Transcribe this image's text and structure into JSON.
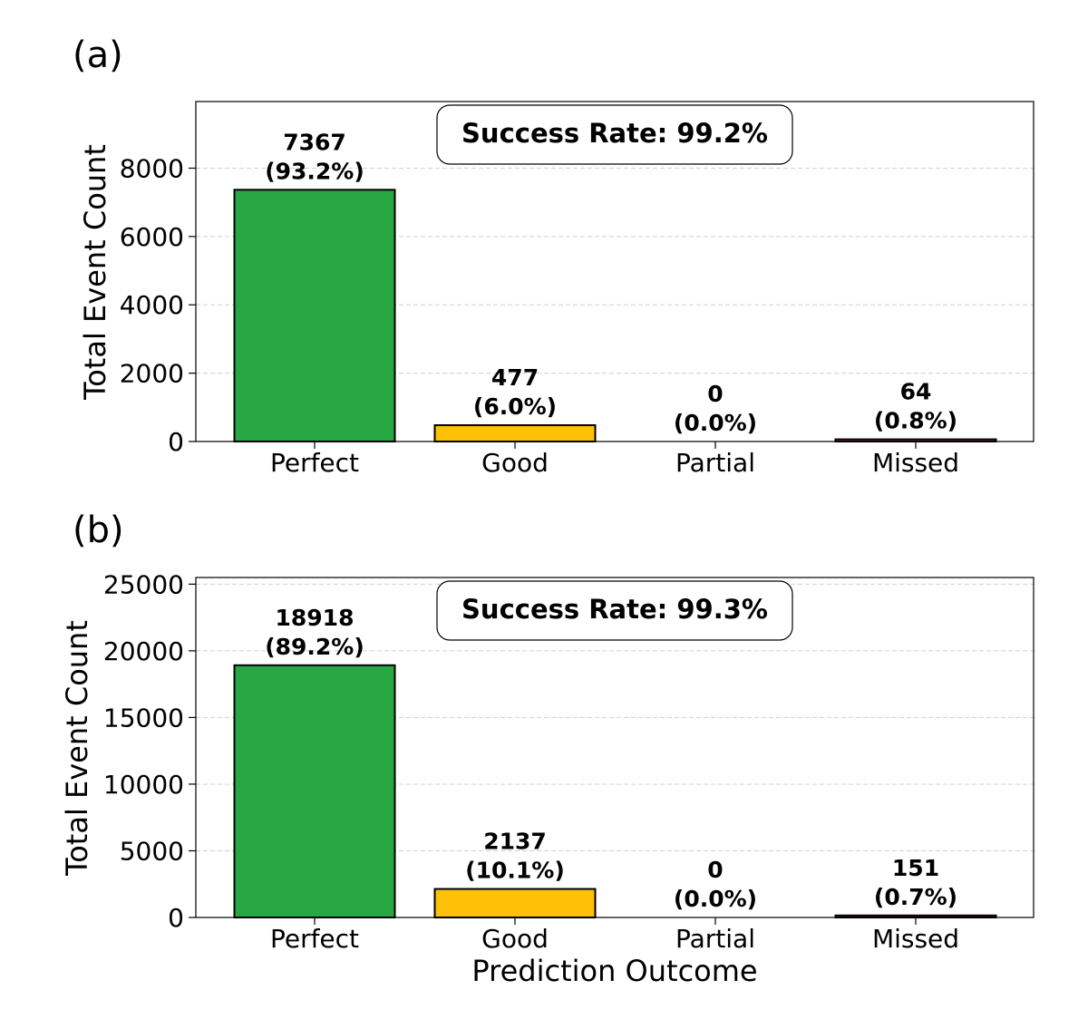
{
  "chart_data": [
    {
      "type": "bar",
      "panel_label": "(a)",
      "categories": [
        "Perfect",
        "Good",
        "Partial",
        "Missed"
      ],
      "values": [
        7367,
        477,
        0,
        64
      ],
      "bar_labels": [
        "7367",
        "477",
        "0",
        "64"
      ],
      "percent_labels": [
        "(93.2%)",
        "(6.0%)",
        "(0.0%)",
        "(0.8%)"
      ],
      "colors": [
        "#28a745",
        "#ffc107",
        "#fd7e14",
        "#dc3545"
      ],
      "ylabel": "Total Event Count",
      "xlabel": "",
      "ylim": [
        0,
        9950
      ],
      "yticks": [
        0,
        2000,
        4000,
        6000,
        8000
      ],
      "ytick_labels": [
        "0",
        "2000",
        "4000",
        "6000",
        "8000"
      ],
      "annotation": "Success Rate: 99.2%",
      "grid": true
    },
    {
      "type": "bar",
      "panel_label": "(b)",
      "categories": [
        "Perfect",
        "Good",
        "Partial",
        "Missed"
      ],
      "values": [
        18918,
        2137,
        0,
        151
      ],
      "bar_labels": [
        "18918",
        "2137",
        "0",
        "151"
      ],
      "percent_labels": [
        "(89.2%)",
        "(10.1%)",
        "(0.0%)",
        "(0.7%)"
      ],
      "colors": [
        "#28a745",
        "#ffc107",
        "#fd7e14",
        "#dc3545"
      ],
      "ylabel": "Total Event Count",
      "xlabel": "Prediction Outcome",
      "ylim": [
        0,
        25500
      ],
      "yticks": [
        0,
        5000,
        10000,
        15000,
        20000,
        25000
      ],
      "ytick_labels": [
        "0",
        "5000",
        "10000",
        "15000",
        "20000",
        "25000"
      ],
      "annotation": "Success Rate: 99.3%",
      "grid": true
    }
  ]
}
